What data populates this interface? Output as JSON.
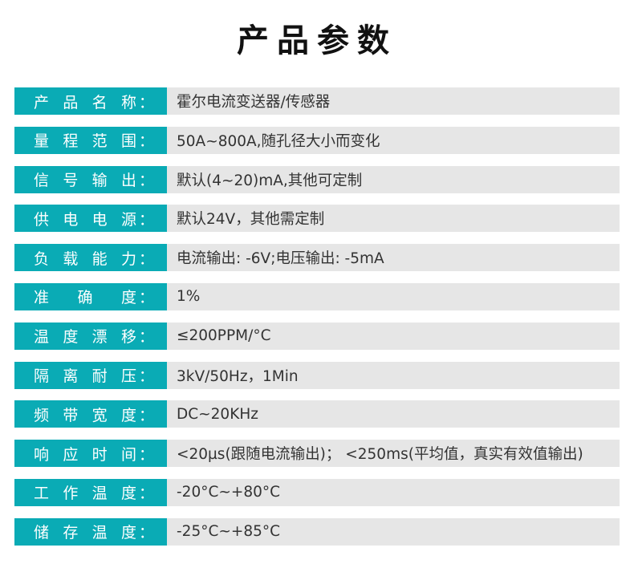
{
  "title": "产品参数",
  "rows": [
    {
      "label": "产品名称",
      "value": "霍尔电流变送器/传感器"
    },
    {
      "label": "量程范围",
      "value": "50A~800A,随孔径大小而变化"
    },
    {
      "label": "信号输出",
      "value": "默认(4~20)mA,其他可定制"
    },
    {
      "label": "供电电源",
      "value": "默认24V，其他需定制"
    },
    {
      "label": "负载能力",
      "value": "电流输出: -6V;电压输出: -5mA"
    },
    {
      "label": "准确度",
      "value": "1%"
    },
    {
      "label": "温度漂移",
      "value": "≤200PPM/°C"
    },
    {
      "label": "隔离耐压",
      "value": "3kV/50Hz，1Min"
    },
    {
      "label": "频带宽度",
      "value": "DC~20KHz"
    },
    {
      "label": "响应时间",
      "value": "<20µs(跟随电流输出)； <250ms(平均值，真实有效值输出)"
    },
    {
      "label": "工作温度",
      "value": "-20°C~+80°C"
    },
    {
      "label": "储存温度",
      "value": "-25°C~+85°C"
    }
  ],
  "colon": "：",
  "colors": {
    "label_bg": "#0aabb5",
    "value_bg": "#e6e6e6"
  }
}
